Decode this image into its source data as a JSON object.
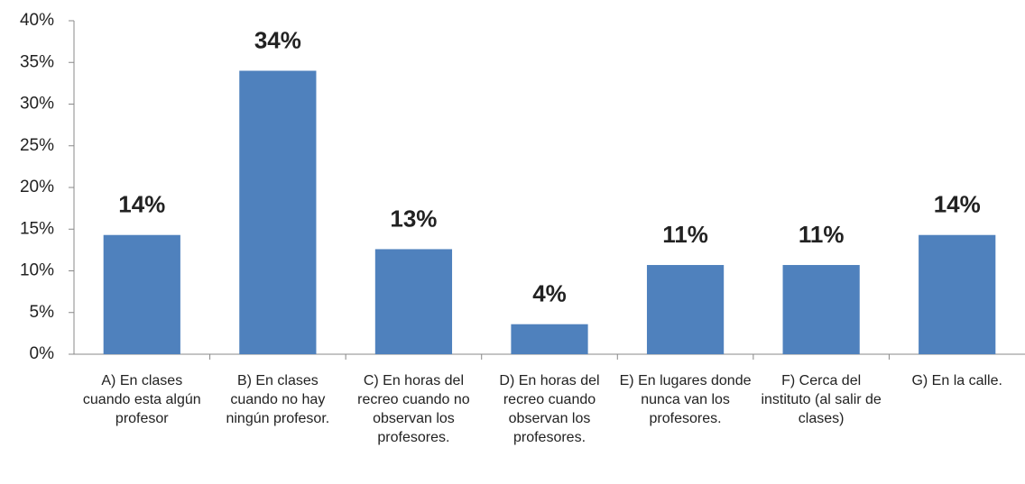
{
  "chart_data": {
    "type": "bar",
    "categories": [
      "A) En clases cuando esta algún profesor",
      "B) En clases cuando no hay ningún profesor.",
      "C) En horas del recreo cuando no observan los profesores.",
      "D) En horas del recreo cuando observan los profesores.",
      "E) En lugares donde nunca van los profesores.",
      "F) Cerca del instituto (al salir de clases)",
      "G) En la calle."
    ],
    "values": [
      14.3,
      34,
      12.6,
      3.6,
      10.7,
      10.7,
      14.3
    ],
    "value_labels": [
      "14%",
      "34%",
      "13%",
      "4%",
      "11%",
      "11%",
      "14%"
    ],
    "color": "#4f81bd",
    "ylim": [
      0,
      40
    ],
    "yticks": [
      {
        "value": 0,
        "label": "0%"
      },
      {
        "value": 5,
        "label": "5%"
      },
      {
        "value": 10,
        "label": "10%"
      },
      {
        "value": 15,
        "label": "15%"
      },
      {
        "value": 20,
        "label": "20%"
      },
      {
        "value": 25,
        "label": "25%"
      },
      {
        "value": 30,
        "label": "30%"
      },
      {
        "value": 35,
        "label": "35%"
      },
      {
        "value": 40,
        "label": "40%"
      }
    ],
    "grid": false
  }
}
